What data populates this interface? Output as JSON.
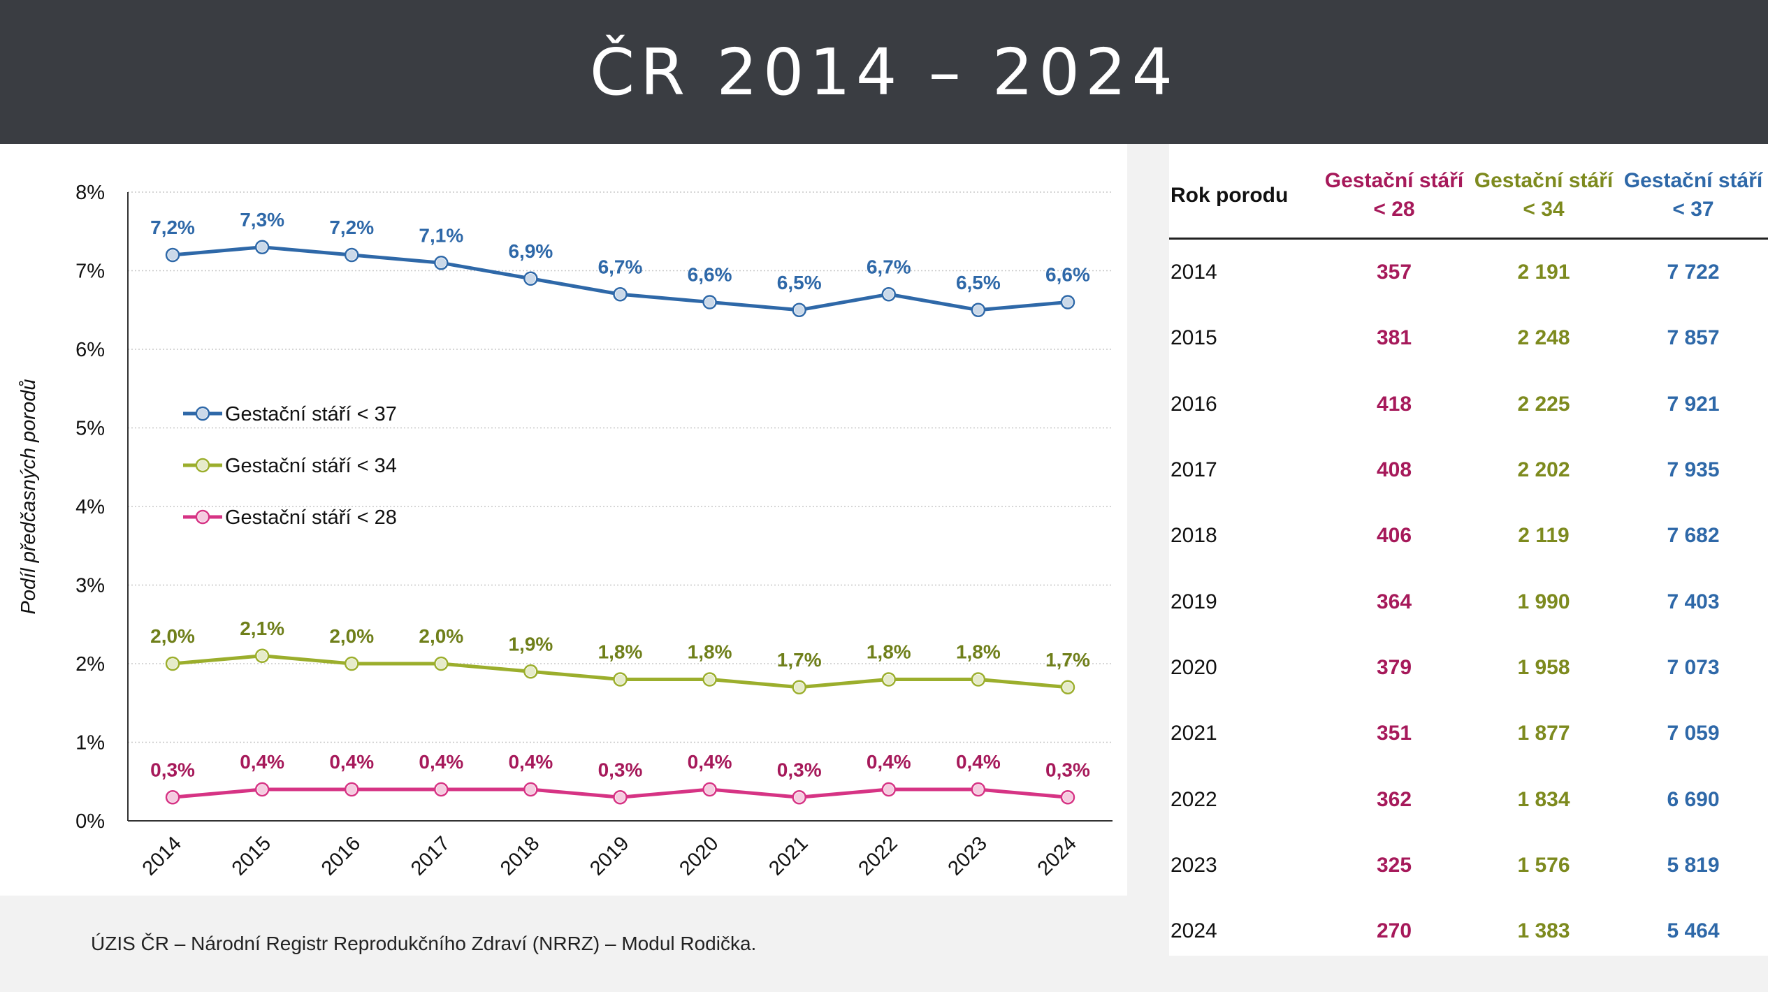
{
  "header": {
    "title": "ČR 2014 – 2024"
  },
  "footer": {
    "source": "ÚZIS ČR – Národní Registr Reprodukčního Zdraví (NRRZ) – Modul Rodička."
  },
  "colors": {
    "lt37": "#2e68a8",
    "lt34": "#9bae2c",
    "lt28": "#d63384",
    "lt37_label": "#2e68a8",
    "lt34_label": "#6f7f1a",
    "lt28_label": "#a6195a"
  },
  "chart_data": {
    "type": "line",
    "ylabel": "Podíl předčasných porodů",
    "xlabel": "",
    "ylim": [
      0,
      8
    ],
    "yticks": [
      "0%",
      "1%",
      "2%",
      "3%",
      "4%",
      "5%",
      "6%",
      "7%",
      "8%"
    ],
    "grid": "horizontal-dotted",
    "legend_position": "left-middle",
    "categories": [
      "2014",
      "2015",
      "2016",
      "2017",
      "2018",
      "2019",
      "2020",
      "2021",
      "2022",
      "2023",
      "2024"
    ],
    "series": [
      {
        "key": "lt37",
        "name": "Gestační stáří < 37",
        "values": [
          7.2,
          7.3,
          7.2,
          7.1,
          6.9,
          6.7,
          6.6,
          6.5,
          6.7,
          6.5,
          6.6
        ],
        "labels": [
          "7,2%",
          "7,3%",
          "7,2%",
          "7,1%",
          "6,9%",
          "6,7%",
          "6,6%",
          "6,5%",
          "6,7%",
          "6,5%",
          "6,6%"
        ]
      },
      {
        "key": "lt34",
        "name": "Gestační stáří < 34",
        "values": [
          2.0,
          2.1,
          2.0,
          2.0,
          1.9,
          1.8,
          1.8,
          1.7,
          1.8,
          1.8,
          1.7
        ],
        "labels": [
          "2,0%",
          "2,1%",
          "2,0%",
          "2,0%",
          "1,9%",
          "1,8%",
          "1,8%",
          "1,7%",
          "1,8%",
          "1,8%",
          "1,7%"
        ]
      },
      {
        "key": "lt28",
        "name": "Gestační stáří < 28",
        "values": [
          0.3,
          0.4,
          0.4,
          0.4,
          0.4,
          0.3,
          0.4,
          0.3,
          0.4,
          0.4,
          0.3
        ],
        "labels": [
          "0,3%",
          "0,4%",
          "0,4%",
          "0,4%",
          "0,4%",
          "0,3%",
          "0,4%",
          "0,3%",
          "0,4%",
          "0,4%",
          "0,3%"
        ]
      }
    ]
  },
  "table": {
    "headers": {
      "year": "Rok porodu",
      "lt28": [
        "Gestační stáří",
        "< 28"
      ],
      "lt34": [
        "Gestační stáří",
        "< 34"
      ],
      "lt37": [
        "Gestační stáří",
        "< 37"
      ]
    },
    "rows": [
      {
        "year": "2014",
        "lt28": "357",
        "lt34": "2 191",
        "lt37": "7 722"
      },
      {
        "year": "2015",
        "lt28": "381",
        "lt34": "2 248",
        "lt37": "7 857"
      },
      {
        "year": "2016",
        "lt28": "418",
        "lt34": "2 225",
        "lt37": "7 921"
      },
      {
        "year": "2017",
        "lt28": "408",
        "lt34": "2 202",
        "lt37": "7 935"
      },
      {
        "year": "2018",
        "lt28": "406",
        "lt34": "2 119",
        "lt37": "7 682"
      },
      {
        "year": "2019",
        "lt28": "364",
        "lt34": "1 990",
        "lt37": "7 403"
      },
      {
        "year": "2020",
        "lt28": "379",
        "lt34": "1 958",
        "lt37": "7 073"
      },
      {
        "year": "2021",
        "lt28": "351",
        "lt34": "1 877",
        "lt37": "7 059"
      },
      {
        "year": "2022",
        "lt28": "362",
        "lt34": "1 834",
        "lt37": "6 690"
      },
      {
        "year": "2023",
        "lt28": "325",
        "lt34": "1 576",
        "lt37": "5 819"
      },
      {
        "year": "2024",
        "lt28": "270",
        "lt34": "1 383",
        "lt37": "5 464"
      }
    ]
  }
}
